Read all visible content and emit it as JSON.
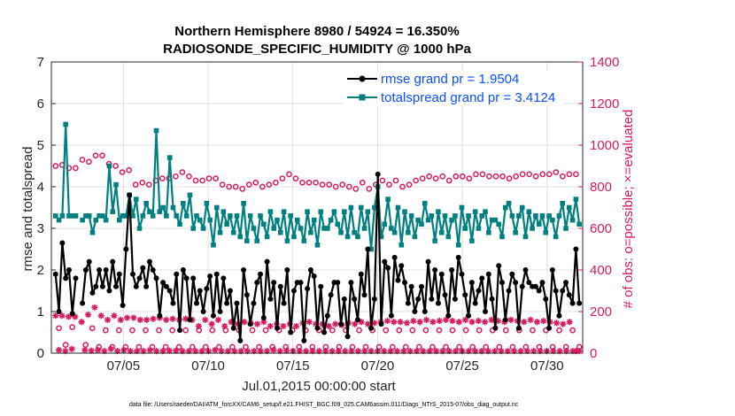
{
  "chart_data": {
    "type": "line",
    "title": "Northern Hemisphere 8980 / 54924 = 16.350%",
    "subtitle": "RADIOSONDE_SPECIFIC_HUMIDITY @ 1000 hPa",
    "xlabel": "Jul.01,2015 00:00:00 start",
    "ylabel": "rmse and totalspread",
    "ylabel_right": "# of obs: o=possible; ×=evaluated",
    "footer": "data file: /Users/raeder/DAI/ATM_forcXX/CAM6_setup/f.e21.FHIST_BGC.f09_025.CAM6assim.011/Diags_NTrS_2015-07/obs_diag_output.nc",
    "xlim": [
      0.75,
      32.1
    ],
    "ylim": [
      0,
      7
    ],
    "ylim_right": [
      0,
      1400
    ],
    "x_ticks": [
      {
        "x": 5,
        "label": "07/05"
      },
      {
        "x": 10,
        "label": "07/10"
      },
      {
        "x": 15,
        "label": "07/15"
      },
      {
        "x": 20,
        "label": "07/20"
      },
      {
        "x": 25,
        "label": "07/25"
      },
      {
        "x": 30,
        "label": "07/30"
      }
    ],
    "y_ticks": [
      "0",
      "1",
      "2",
      "3",
      "4",
      "5",
      "6",
      "7"
    ],
    "y_ticks_right": [
      "0",
      "200",
      "400",
      "600",
      "800",
      "1000",
      "1200",
      "1400"
    ],
    "legend": [
      {
        "name": "rmse grand pr = 1.9504",
        "color": "#000000"
      },
      {
        "name": "totalspread grand pr = 3.4124",
        "color": "#008080"
      }
    ],
    "series": [
      {
        "name": "rmse",
        "color": "#000000",
        "axis": "left",
        "values": [
          1.9,
          1.0,
          2.65,
          1.8,
          2.0,
          0.95,
          1.8,
          null,
          1.2,
          2.0,
          2.2,
          1.45,
          1.6,
          2.0,
          1.6,
          2.0,
          1.5,
          2.2,
          1.6,
          1.9,
          1.15,
          2.5,
          3.8,
          1.9,
          1.6,
          1.8,
          2.05,
          1.6,
          2.2,
          2.0,
          1.8,
          0.9,
          1.7,
          1.6,
          1.5,
          1.2,
          1.9,
          0.55,
          2.0,
          1.8,
          0.8,
          1.8,
          1.2,
          1.5,
          1.0,
          1.55,
          1.85,
          0.9,
          1.9,
          1.0,
          1.8,
          1.2,
          1.5,
          0.6,
          1.2,
          0.3,
          2.0,
          1.4,
          0.7,
          1.2,
          1.7,
          1.9,
          0.85,
          2.2,
          1.3,
          1.7,
          0.6,
          1.6,
          1.2,
          2.0,
          0.5,
          1.5,
          1.7,
          1.7,
          0.3,
          1.55,
          2.0,
          1.85,
          0.6,
          1.6,
          0.5,
          0.9,
          1.4,
          1.7,
          1.7,
          0.7,
          1.3,
          0.4,
          1.7,
          1.3,
          0.8,
          1.9,
          1.4,
          2.5,
          0.6,
          1.3,
          4.3,
          0.7,
          2.2,
          2.05,
          0.9,
          2.3,
          1.75,
          2.1,
          1.7,
          1.2,
          1.6,
          1.0,
          1.3,
          1.6,
          1.0,
          2.2,
          1.3,
          2.0,
          1.2,
          1.9,
          1.4,
          0.9,
          2.0,
          1.3,
          2.3,
          1.9,
          1.4,
          0.9,
          1.7,
          1.2,
          1.5,
          1.8,
          1.0,
          1.9,
          1.3,
          0.6,
          2.1,
          1.7,
          0.8,
          1.5,
          1.9,
          1.7,
          0.6,
          1.6,
          2.0,
          1.7,
          1.6,
          1.6,
          1.5,
          1.7,
          1.3,
          0.6,
          2.0,
          1.5,
          0.9,
          1.5,
          1.7,
          1.4,
          1.2,
          2.5,
          1.2
        ]
      },
      {
        "name": "totalspread",
        "color": "#008080",
        "axis": "left",
        "values": [
          3.3,
          3.2,
          3.3,
          5.5,
          3.3,
          3.3,
          3.3,
          null,
          3.2,
          3.3,
          3.3,
          2.9,
          3.2,
          3.3,
          3.3,
          3.2,
          4.5,
          3.4,
          4.05,
          3.2,
          3.3,
          3.3,
          3.8,
          3.3,
          3.7,
          3.0,
          3.3,
          3.6,
          3.4,
          3.3,
          5.35,
          3.4,
          3.5,
          3.3,
          4.7,
          3.5,
          3.3,
          3.1,
          3.6,
          3.3,
          3.8,
          3.0,
          3.3,
          3.2,
          3.0,
          3.6,
          3.2,
          2.6,
          3.5,
          2.9,
          3.4,
          3.1,
          3.3,
          2.9,
          3.3,
          2.8,
          3.6,
          2.7,
          3.3,
          3.0,
          2.7,
          3.3,
          3.1,
          2.8,
          3.4,
          3.0,
          3.2,
          2.9,
          3.4,
          2.7,
          3.3,
          2.8,
          3.2,
          3.0,
          2.7,
          3.4,
          2.9,
          3.2,
          2.6,
          3.4,
          3.0,
          3.0,
          3.2,
          3.4,
          3.1,
          2.9,
          3.4,
          2.8,
          3.5,
          2.9,
          2.8,
          3.5,
          3.0,
          3.4,
          2.5,
          3.5,
          4.0,
          2.8,
          3.1,
          3.7,
          3.0,
          2.9,
          3.5,
          2.6,
          3.4,
          2.9,
          3.3,
          2.8,
          3.2,
          3.1,
          3.6,
          3.2,
          3.3,
          2.7,
          3.4,
          2.9,
          3.3,
          2.8,
          3.2,
          3.3,
          2.6,
          3.5,
          3.0,
          3.3,
          2.7,
          3.4,
          3.0,
          3.3,
          3.4,
          2.9,
          3.2,
          3.2,
          3.1,
          2.8,
          3.5,
          3.6,
          3.3,
          2.9,
          3.3,
          3.5,
          2.8,
          3.4,
          3.0,
          3.3,
          3.1,
          3.3,
          2.9,
          3.3,
          3.2,
          2.8,
          3.3,
          3.6,
          3.0,
          3.5,
          3.2,
          3.7,
          3.1
        ]
      },
      {
        "name": "possible obs",
        "color": "#d81b60",
        "axis": "right",
        "marker": "circle",
        "values": [
          900,
          120,
          905,
          40,
          890,
          125,
          890,
          null,
          930,
          40,
          920,
          120,
          950,
          30,
          950,
          110,
          910,
          30,
          900,
          110,
          870,
          30,
          880,
          110,
          810,
          30,
          820,
          110,
          810,
          30,
          830,
          110,
          840,
          30,
          840,
          110,
          850,
          30,
          870,
          110,
          850,
          30,
          830,
          110,
          830,
          30,
          840,
          110,
          840,
          30,
          810,
          110,
          800,
          30,
          800,
          110,
          790,
          30,
          810,
          110,
          820,
          30,
          800,
          110,
          810,
          30,
          820,
          110,
          840,
          30,
          860,
          110,
          840,
          30,
          820,
          110,
          820,
          30,
          820,
          110,
          810,
          30,
          810,
          110,
          800,
          30,
          810,
          110,
          800,
          30,
          790,
          110,
          820,
          30,
          790,
          110,
          810,
          30,
          830,
          110,
          810,
          30,
          830,
          110,
          800,
          30,
          810,
          110,
          830,
          30,
          840,
          110,
          850,
          30,
          840,
          110,
          850,
          30,
          830,
          110,
          850,
          30,
          850,
          110,
          840,
          30,
          860,
          110,
          860,
          30,
          850,
          110,
          850,
          30,
          850,
          110,
          840,
          30,
          850,
          110,
          860,
          30,
          860,
          110,
          850,
          30,
          860,
          110,
          860,
          30,
          870,
          110,
          850,
          30,
          860,
          110,
          860,
          30
        ]
      },
      {
        "name": "evaluated obs",
        "color": "#d81b60",
        "axis": "right",
        "marker": "star",
        "values": [
          180,
          15,
          180,
          10,
          175,
          20,
          175,
          null,
          150,
          15,
          185,
          12,
          220,
          15,
          180,
          10,
          160,
          20,
          180,
          10,
          160,
          15,
          170,
          10,
          170,
          10,
          160,
          10,
          160,
          15,
          165,
          10,
          170,
          10,
          160,
          12,
          165,
          12,
          160,
          10,
          165,
          10,
          160,
          10,
          130,
          10,
          160,
          10,
          140,
          15,
          160,
          10,
          130,
          10,
          150,
          10,
          140,
          10,
          150,
          10,
          145,
          10,
          140,
          10,
          150,
          10,
          130,
          15,
          140,
          10,
          130,
          12,
          140,
          10,
          130,
          10,
          145,
          10,
          150,
          10,
          140,
          10,
          140,
          10,
          130,
          10,
          140,
          10,
          135,
          10,
          145,
          10,
          140,
          10,
          150,
          10,
          140,
          10,
          145,
          10,
          150,
          10,
          155,
          10,
          150,
          10,
          150,
          10,
          145,
          10,
          155,
          10,
          150,
          10,
          160,
          10,
          150,
          10,
          155,
          10,
          160,
          10,
          155,
          10,
          150,
          10,
          160,
          10,
          150,
          10,
          155,
          10,
          150,
          10,
          160,
          10,
          155,
          10,
          150,
          10,
          160,
          10,
          155,
          10,
          150,
          10,
          160,
          10,
          150,
          10,
          155,
          10,
          150,
          10,
          145,
          10,
          140,
          10,
          150,
          10,
          10,
          10
        ]
      }
    ]
  }
}
